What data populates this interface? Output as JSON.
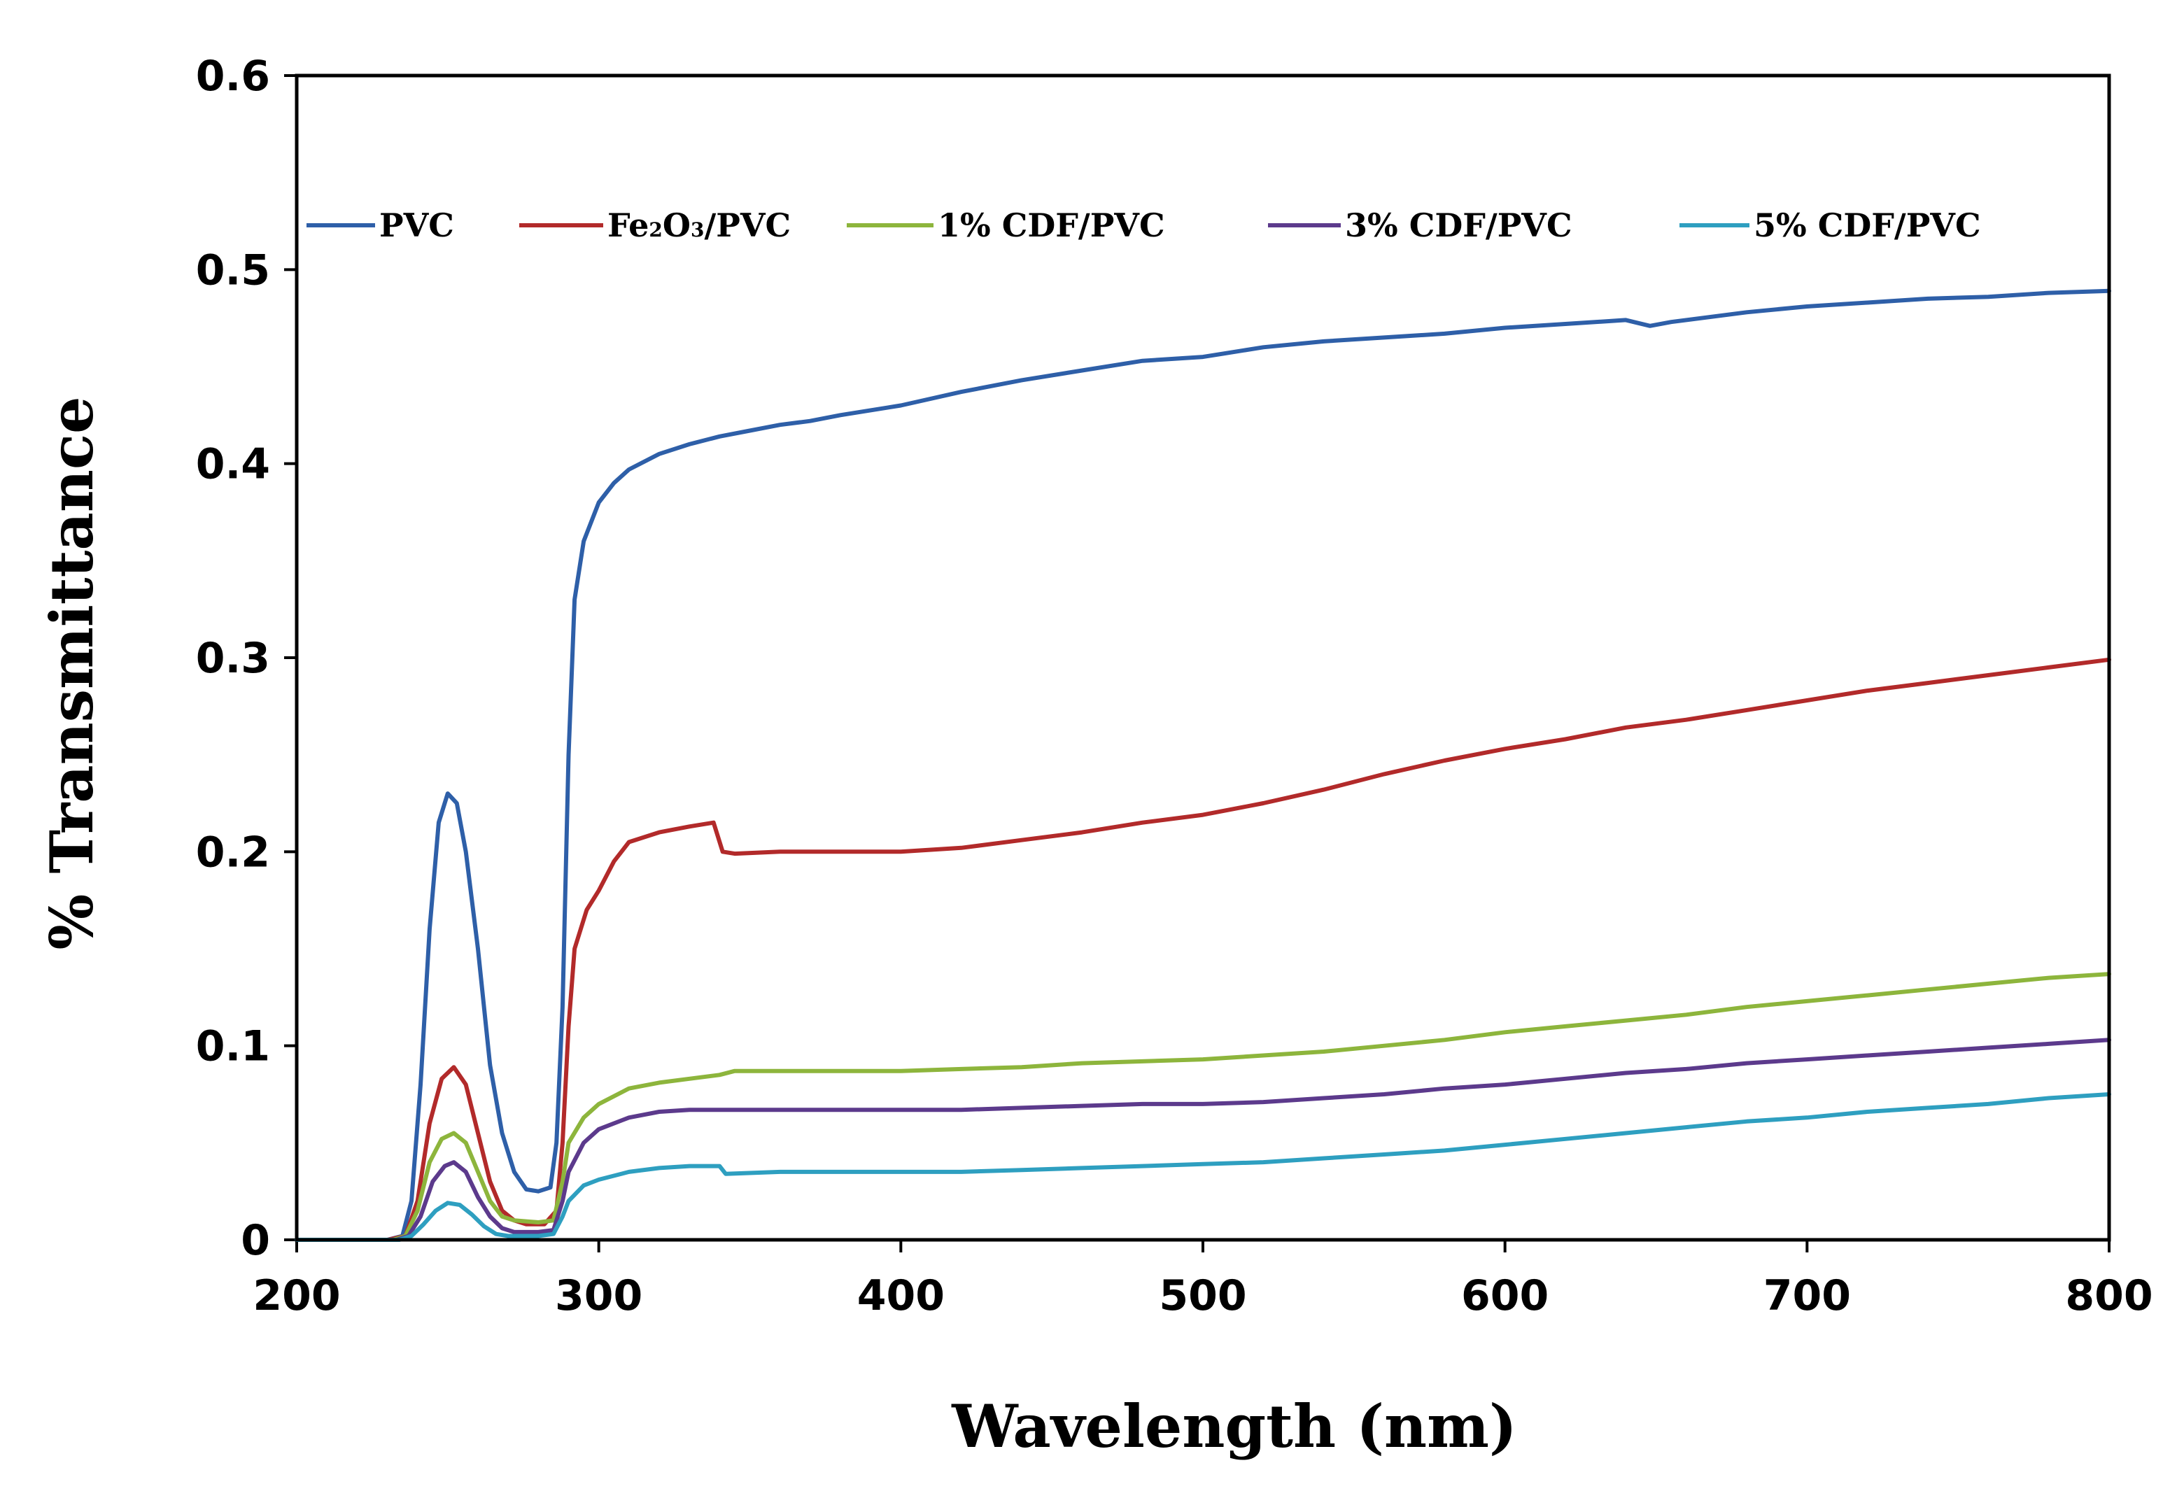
{
  "chart_data": {
    "type": "line",
    "title": "",
    "xlabel": "Wavelength (nm)",
    "ylabel": "% Transmittance",
    "xlim": [
      200,
      800
    ],
    "ylim": [
      0,
      0.6
    ],
    "x_ticks": [
      200,
      300,
      400,
      500,
      600,
      700,
      800
    ],
    "x_tick_labels": [
      "200",
      "300",
      "400",
      "500",
      "600",
      "700",
      "800"
    ],
    "y_ticks": [
      0,
      0.1,
      0.2,
      0.3,
      0.4,
      0.5,
      0.6
    ],
    "y_tick_labels": [
      "0",
      "0.1",
      "0.2",
      "0.3",
      "0.4",
      "0.5",
      "0.6"
    ],
    "grid": false,
    "legend_position": "top",
    "series": [
      {
        "name": "PVC",
        "label_main": "PVC",
        "color": "#2E5FA8",
        "points": [
          [
            200,
            0
          ],
          [
            230,
            0
          ],
          [
            235,
            0.002
          ],
          [
            238,
            0.02
          ],
          [
            241,
            0.08
          ],
          [
            244,
            0.16
          ],
          [
            247,
            0.215
          ],
          [
            250,
            0.23
          ],
          [
            253,
            0.225
          ],
          [
            256,
            0.2
          ],
          [
            260,
            0.15
          ],
          [
            264,
            0.09
          ],
          [
            268,
            0.055
          ],
          [
            272,
            0.035
          ],
          [
            276,
            0.026
          ],
          [
            280,
            0.025
          ],
          [
            284,
            0.027
          ],
          [
            286,
            0.05
          ],
          [
            288,
            0.12
          ],
          [
            290,
            0.25
          ],
          [
            292,
            0.33
          ],
          [
            295,
            0.36
          ],
          [
            300,
            0.38
          ],
          [
            305,
            0.39
          ],
          [
            310,
            0.397
          ],
          [
            320,
            0.405
          ],
          [
            330,
            0.41
          ],
          [
            340,
            0.414
          ],
          [
            350,
            0.417
          ],
          [
            360,
            0.42
          ],
          [
            370,
            0.422
          ],
          [
            380,
            0.425
          ],
          [
            400,
            0.43
          ],
          [
            420,
            0.437
          ],
          [
            440,
            0.443
          ],
          [
            460,
            0.448
          ],
          [
            480,
            0.453
          ],
          [
            500,
            0.455
          ],
          [
            520,
            0.46
          ],
          [
            540,
            0.463
          ],
          [
            560,
            0.465
          ],
          [
            580,
            0.467
          ],
          [
            600,
            0.47
          ],
          [
            620,
            0.472
          ],
          [
            640,
            0.474
          ],
          [
            648,
            0.471
          ],
          [
            655,
            0.473
          ],
          [
            680,
            0.478
          ],
          [
            700,
            0.481
          ],
          [
            720,
            0.483
          ],
          [
            740,
            0.485
          ],
          [
            760,
            0.486
          ],
          [
            780,
            0.488
          ],
          [
            800,
            0.489
          ]
        ]
      },
      {
        "name": "Fe2O3/PVC",
        "label_main": "Fe",
        "label_sub1": "2",
        "label_mid": "O",
        "label_sub2": "3",
        "label_end": "/PVC",
        "color": "#B22A2A",
        "points": [
          [
            200,
            0
          ],
          [
            230,
            0
          ],
          [
            236,
            0.002
          ],
          [
            240,
            0.02
          ],
          [
            244,
            0.06
          ],
          [
            248,
            0.083
          ],
          [
            252,
            0.089
          ],
          [
            256,
            0.08
          ],
          [
            260,
            0.055
          ],
          [
            264,
            0.03
          ],
          [
            268,
            0.015
          ],
          [
            272,
            0.01
          ],
          [
            276,
            0.008
          ],
          [
            282,
            0.008
          ],
          [
            286,
            0.015
          ],
          [
            288,
            0.05
          ],
          [
            290,
            0.11
          ],
          [
            292,
            0.15
          ],
          [
            296,
            0.17
          ],
          [
            300,
            0.18
          ],
          [
            305,
            0.195
          ],
          [
            310,
            0.205
          ],
          [
            320,
            0.21
          ],
          [
            330,
            0.213
          ],
          [
            338,
            0.215
          ],
          [
            341,
            0.2
          ],
          [
            345,
            0.199
          ],
          [
            360,
            0.2
          ],
          [
            380,
            0.2
          ],
          [
            400,
            0.2
          ],
          [
            420,
            0.202
          ],
          [
            440,
            0.206
          ],
          [
            460,
            0.21
          ],
          [
            480,
            0.215
          ],
          [
            500,
            0.219
          ],
          [
            520,
            0.225
          ],
          [
            540,
            0.232
          ],
          [
            560,
            0.24
          ],
          [
            580,
            0.247
          ],
          [
            600,
            0.253
          ],
          [
            620,
            0.258
          ],
          [
            640,
            0.264
          ],
          [
            660,
            0.268
          ],
          [
            680,
            0.273
          ],
          [
            700,
            0.278
          ],
          [
            720,
            0.283
          ],
          [
            740,
            0.287
          ],
          [
            760,
            0.291
          ],
          [
            780,
            0.295
          ],
          [
            800,
            0.299
          ]
        ]
      },
      {
        "name": "1% CDF/PVC",
        "label_main": "1% CDF/PVC",
        "color": "#8DB53C",
        "points": [
          [
            200,
            0
          ],
          [
            232,
            0
          ],
          [
            236,
            0.002
          ],
          [
            240,
            0.015
          ],
          [
            244,
            0.04
          ],
          [
            248,
            0.052
          ],
          [
            252,
            0.055
          ],
          [
            256,
            0.05
          ],
          [
            260,
            0.035
          ],
          [
            264,
            0.02
          ],
          [
            268,
            0.012
          ],
          [
            272,
            0.01
          ],
          [
            280,
            0.009
          ],
          [
            285,
            0.01
          ],
          [
            288,
            0.03
          ],
          [
            290,
            0.05
          ],
          [
            295,
            0.063
          ],
          [
            300,
            0.07
          ],
          [
            310,
            0.078
          ],
          [
            320,
            0.081
          ],
          [
            330,
            0.083
          ],
          [
            340,
            0.085
          ],
          [
            345,
            0.087
          ],
          [
            360,
            0.087
          ],
          [
            380,
            0.087
          ],
          [
            400,
            0.087
          ],
          [
            420,
            0.088
          ],
          [
            440,
            0.089
          ],
          [
            460,
            0.091
          ],
          [
            480,
            0.092
          ],
          [
            500,
            0.093
          ],
          [
            520,
            0.095
          ],
          [
            540,
            0.097
          ],
          [
            560,
            0.1
          ],
          [
            580,
            0.103
          ],
          [
            600,
            0.107
          ],
          [
            620,
            0.11
          ],
          [
            640,
            0.113
          ],
          [
            660,
            0.116
          ],
          [
            680,
            0.12
          ],
          [
            700,
            0.123
          ],
          [
            720,
            0.126
          ],
          [
            740,
            0.129
          ],
          [
            760,
            0.132
          ],
          [
            780,
            0.135
          ],
          [
            800,
            0.137
          ]
        ]
      },
      {
        "name": "3% CDF/PVC",
        "label_main": "3% CDF/PVC",
        "color": "#5C3A8C",
        "points": [
          [
            200,
            0
          ],
          [
            233,
            0
          ],
          [
            237,
            0.002
          ],
          [
            241,
            0.012
          ],
          [
            245,
            0.03
          ],
          [
            249,
            0.038
          ],
          [
            252,
            0.04
          ],
          [
            256,
            0.035
          ],
          [
            260,
            0.022
          ],
          [
            264,
            0.012
          ],
          [
            268,
            0.006
          ],
          [
            272,
            0.004
          ],
          [
            280,
            0.004
          ],
          [
            285,
            0.005
          ],
          [
            288,
            0.02
          ],
          [
            290,
            0.035
          ],
          [
            295,
            0.05
          ],
          [
            300,
            0.057
          ],
          [
            310,
            0.063
          ],
          [
            320,
            0.066
          ],
          [
            330,
            0.067
          ],
          [
            340,
            0.067
          ],
          [
            360,
            0.067
          ],
          [
            380,
            0.067
          ],
          [
            400,
            0.067
          ],
          [
            420,
            0.067
          ],
          [
            440,
            0.068
          ],
          [
            460,
            0.069
          ],
          [
            480,
            0.07
          ],
          [
            500,
            0.07
          ],
          [
            520,
            0.071
          ],
          [
            540,
            0.073
          ],
          [
            560,
            0.075
          ],
          [
            580,
            0.078
          ],
          [
            600,
            0.08
          ],
          [
            620,
            0.083
          ],
          [
            640,
            0.086
          ],
          [
            660,
            0.088
          ],
          [
            680,
            0.091
          ],
          [
            700,
            0.093
          ],
          [
            720,
            0.095
          ],
          [
            740,
            0.097
          ],
          [
            760,
            0.099
          ],
          [
            780,
            0.101
          ],
          [
            800,
            0.103
          ]
        ]
      },
      {
        "name": "5% CDF/PVC",
        "label_main": "5% CDF/PVC",
        "color": "#2E9FC0",
        "points": [
          [
            200,
            0
          ],
          [
            234,
            0
          ],
          [
            238,
            0.002
          ],
          [
            242,
            0.008
          ],
          [
            246,
            0.015
          ],
          [
            250,
            0.019
          ],
          [
            254,
            0.018
          ],
          [
            258,
            0.013
          ],
          [
            262,
            0.007
          ],
          [
            266,
            0.003
          ],
          [
            270,
            0.002
          ],
          [
            280,
            0.002
          ],
          [
            285,
            0.003
          ],
          [
            288,
            0.012
          ],
          [
            290,
            0.02
          ],
          [
            295,
            0.028
          ],
          [
            300,
            0.031
          ],
          [
            310,
            0.035
          ],
          [
            320,
            0.037
          ],
          [
            330,
            0.038
          ],
          [
            340,
            0.038
          ],
          [
            342,
            0.034
          ],
          [
            360,
            0.035
          ],
          [
            380,
            0.035
          ],
          [
            400,
            0.035
          ],
          [
            420,
            0.035
          ],
          [
            440,
            0.036
          ],
          [
            460,
            0.037
          ],
          [
            480,
            0.038
          ],
          [
            500,
            0.039
          ],
          [
            520,
            0.04
          ],
          [
            540,
            0.042
          ],
          [
            560,
            0.044
          ],
          [
            580,
            0.046
          ],
          [
            600,
            0.049
          ],
          [
            620,
            0.052
          ],
          [
            640,
            0.055
          ],
          [
            660,
            0.058
          ],
          [
            680,
            0.061
          ],
          [
            700,
            0.063
          ],
          [
            720,
            0.066
          ],
          [
            740,
            0.068
          ],
          [
            760,
            0.07
          ],
          [
            780,
            0.073
          ],
          [
            800,
            0.075
          ]
        ]
      }
    ]
  }
}
